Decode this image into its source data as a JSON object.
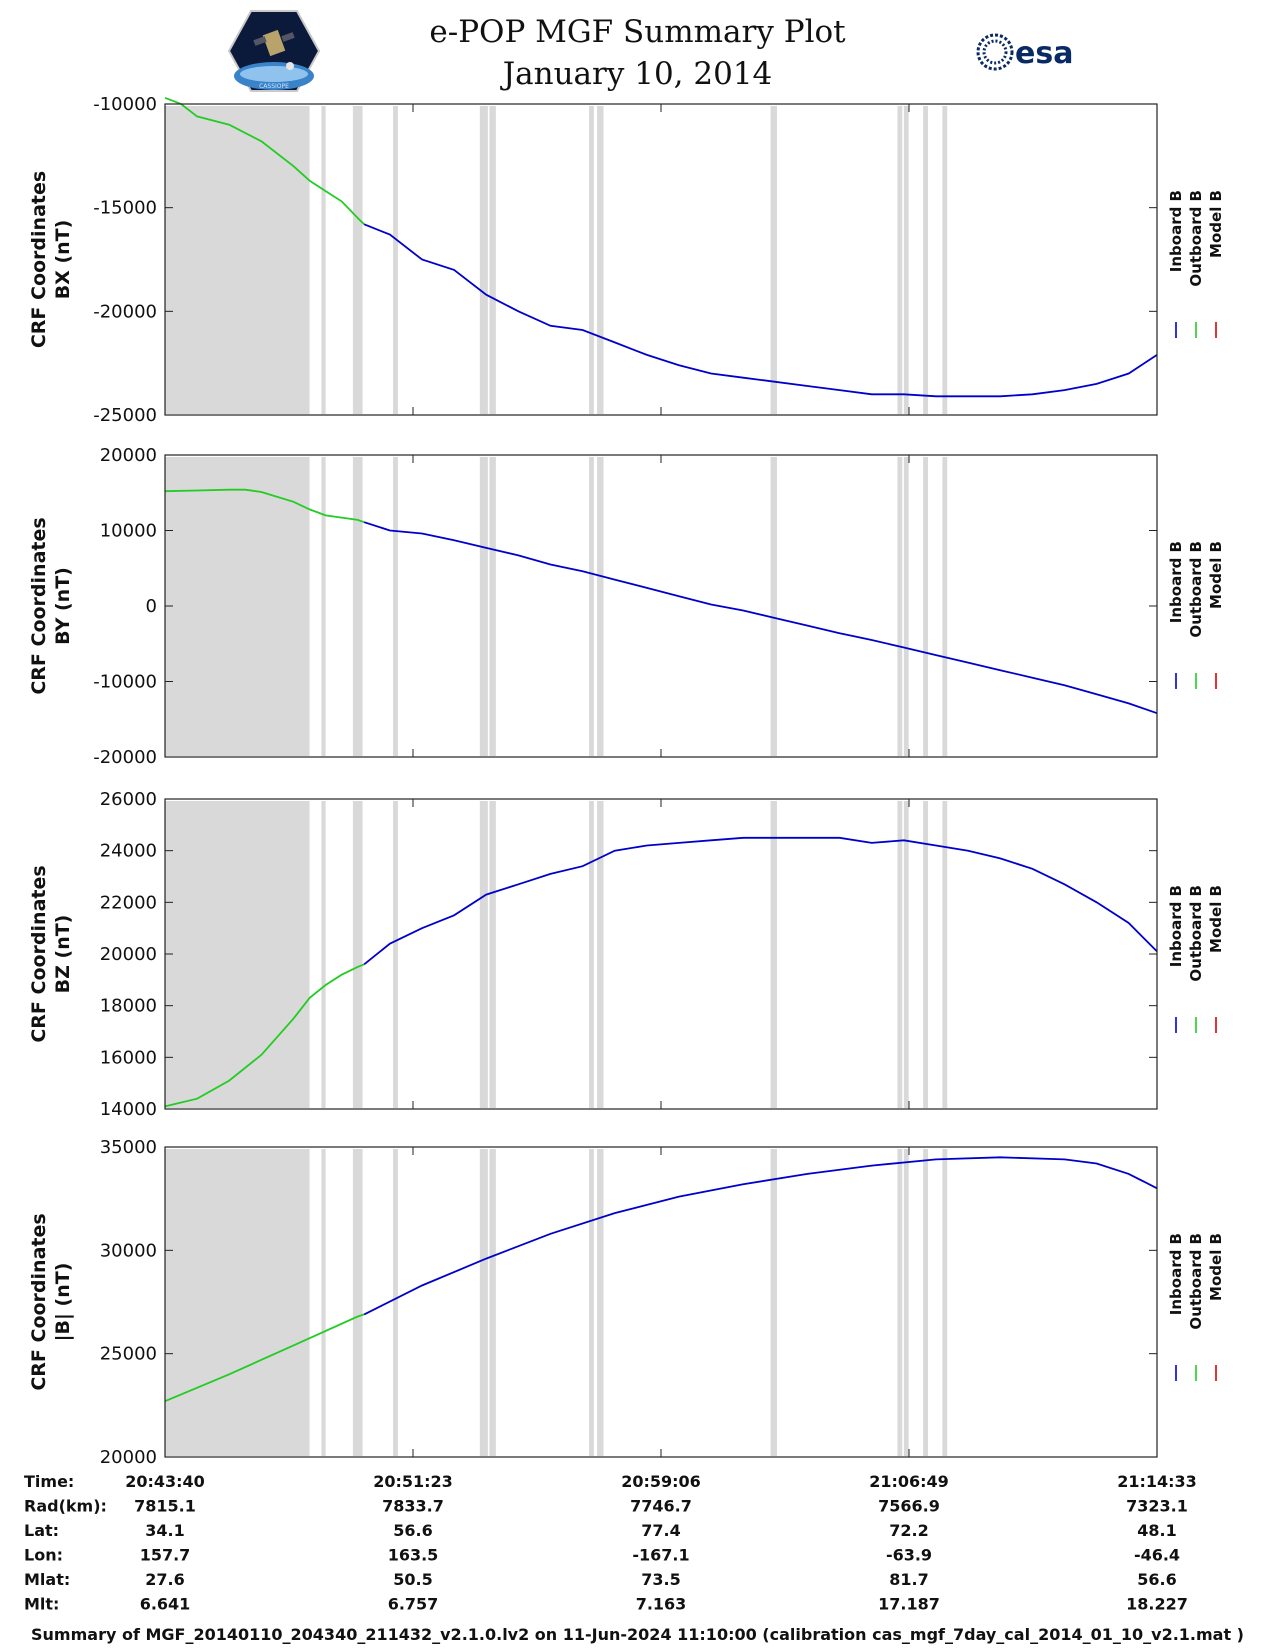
{
  "header": {
    "title": "e-POP MGF Summary Plot",
    "date": "January 10, 2014",
    "logo_left": "CASSIOPE",
    "logo_right": "esa"
  },
  "footer": "Summary of MGF_20140110_204340_211432_v2.1.0.lv2 on 11-Jun-2024 11:10:00 (calibration cas_mgf_7day_cal_2014_01_10_v2.1.mat )",
  "chart_data": {
    "type": "line",
    "x_tick_times": [
      "20:43:40",
      "20:51:23",
      "20:59:06",
      "21:06:49",
      "21:14:33"
    ],
    "x_range_minutes": [
      0,
      30.88
    ],
    "legend": [
      {
        "name": "Inboard B",
        "color": "#0000cc"
      },
      {
        "name": "Outboard B",
        "color": "#22cc22"
      },
      {
        "name": "Model B",
        "color": "#dd0000"
      }
    ],
    "shaded_color": "#d9d9d9",
    "shaded_intervals_minutes": [
      [
        0,
        4.5
      ],
      [
        4.87,
        5.0
      ],
      [
        5.85,
        6.15
      ],
      [
        7.1,
        7.25
      ],
      [
        9.8,
        10.05
      ],
      [
        10.1,
        10.3
      ],
      [
        13.2,
        13.35
      ],
      [
        13.45,
        13.65
      ],
      [
        18.85,
        19.05
      ],
      [
        22.8,
        22.95
      ],
      [
        23.0,
        23.15
      ],
      [
        23.6,
        23.75
      ],
      [
        24.2,
        24.35
      ]
    ],
    "outboard_end_minute": 6.2,
    "panels": [
      {
        "key": "bx",
        "ylabel_line1": "CRF Coordinates",
        "ylabel_line2": "BX (nT)",
        "ylim": [
          -25000,
          -10000
        ],
        "yticks": [
          -25000,
          -20000,
          -15000,
          -10000
        ],
        "series": [
          [
            0,
            -9700
          ],
          [
            0.5,
            -10000
          ],
          [
            1.0,
            -10600
          ],
          [
            2.0,
            -11000
          ],
          [
            3.0,
            -11800
          ],
          [
            4.0,
            -13000
          ],
          [
            4.5,
            -13700
          ],
          [
            5.0,
            -14200
          ],
          [
            5.5,
            -14700
          ],
          [
            6.0,
            -15500
          ],
          [
            6.2,
            -15800
          ],
          [
            7.0,
            -16300
          ],
          [
            8.0,
            -17500
          ],
          [
            9.0,
            -18000
          ],
          [
            10.0,
            -19200
          ],
          [
            11.0,
            -20000
          ],
          [
            12.0,
            -20700
          ],
          [
            13.0,
            -20900
          ],
          [
            14.0,
            -21500
          ],
          [
            15.0,
            -22100
          ],
          [
            16.0,
            -22600
          ],
          [
            17.0,
            -23000
          ],
          [
            18.0,
            -23200
          ],
          [
            19.0,
            -23400
          ],
          [
            20.0,
            -23600
          ],
          [
            21.0,
            -23800
          ],
          [
            22.0,
            -24000
          ],
          [
            23.0,
            -24000
          ],
          [
            24.0,
            -24100
          ],
          [
            25.0,
            -24100
          ],
          [
            26.0,
            -24100
          ],
          [
            27.0,
            -24000
          ],
          [
            28.0,
            -23800
          ],
          [
            29.0,
            -23500
          ],
          [
            30.0,
            -23000
          ],
          [
            30.88,
            -22100
          ]
        ]
      },
      {
        "key": "by",
        "ylabel_line1": "CRF Coordinates",
        "ylabel_line2": "BY (nT)",
        "ylim": [
          -20000,
          20000
        ],
        "yticks": [
          -20000,
          -10000,
          0,
          10000,
          20000
        ],
        "series": [
          [
            0,
            15200
          ],
          [
            1.0,
            15300
          ],
          [
            2.0,
            15400
          ],
          [
            2.5,
            15400
          ],
          [
            3.0,
            15100
          ],
          [
            4.0,
            13800
          ],
          [
            4.5,
            12800
          ],
          [
            5.0,
            12000
          ],
          [
            6.0,
            11400
          ],
          [
            6.2,
            11100
          ],
          [
            7.0,
            10000
          ],
          [
            8.0,
            9600
          ],
          [
            9.0,
            8700
          ],
          [
            10.0,
            7700
          ],
          [
            11.0,
            6700
          ],
          [
            12.0,
            5500
          ],
          [
            13.0,
            4600
          ],
          [
            14.0,
            3500
          ],
          [
            15.0,
            2400
          ],
          [
            16.0,
            1300
          ],
          [
            17.0,
            200
          ],
          [
            18.0,
            -600
          ],
          [
            19.0,
            -1600
          ],
          [
            20.0,
            -2600
          ],
          [
            21.0,
            -3600
          ],
          [
            22.0,
            -4500
          ],
          [
            23.0,
            -5500
          ],
          [
            24.0,
            -6500
          ],
          [
            25.0,
            -7500
          ],
          [
            26.0,
            -8500
          ],
          [
            27.0,
            -9500
          ],
          [
            28.0,
            -10500
          ],
          [
            29.0,
            -11700
          ],
          [
            30.0,
            -12900
          ],
          [
            30.88,
            -14200
          ]
        ]
      },
      {
        "key": "bz",
        "ylabel_line1": "CRF Coordinates",
        "ylabel_line2": "BZ (nT)",
        "ylim": [
          14000,
          26000
        ],
        "yticks": [
          14000,
          16000,
          18000,
          20000,
          22000,
          24000,
          26000
        ],
        "series": [
          [
            0,
            14100
          ],
          [
            1.0,
            14400
          ],
          [
            2.0,
            15100
          ],
          [
            3.0,
            16100
          ],
          [
            4.0,
            17500
          ],
          [
            4.5,
            18300
          ],
          [
            5.0,
            18800
          ],
          [
            5.5,
            19200
          ],
          [
            6.0,
            19500
          ],
          [
            6.2,
            19600
          ],
          [
            7.0,
            20400
          ],
          [
            8.0,
            21000
          ],
          [
            9.0,
            21500
          ],
          [
            10.0,
            22300
          ],
          [
            11.0,
            22700
          ],
          [
            12.0,
            23100
          ],
          [
            13.0,
            23400
          ],
          [
            14.0,
            24000
          ],
          [
            15.0,
            24200
          ],
          [
            16.0,
            24300
          ],
          [
            17.0,
            24400
          ],
          [
            18.0,
            24500
          ],
          [
            19.0,
            24500
          ],
          [
            20.0,
            24500
          ],
          [
            21.0,
            24500
          ],
          [
            22.0,
            24300
          ],
          [
            23.0,
            24400
          ],
          [
            24.0,
            24200
          ],
          [
            25.0,
            24000
          ],
          [
            26.0,
            23700
          ],
          [
            27.0,
            23300
          ],
          [
            28.0,
            22700
          ],
          [
            29.0,
            22000
          ],
          [
            30.0,
            21200
          ],
          [
            30.88,
            20100
          ]
        ]
      },
      {
        "key": "b",
        "ylabel_line1": "CRF Coordinates",
        "ylabel_line2": "|B| (nT)",
        "ylim": [
          20000,
          35000
        ],
        "yticks": [
          20000,
          25000,
          30000,
          35000
        ],
        "series": [
          [
            0,
            22700
          ],
          [
            2.0,
            24000
          ],
          [
            4.0,
            25400
          ],
          [
            6.0,
            26800
          ],
          [
            6.2,
            26900
          ],
          [
            8.0,
            28300
          ],
          [
            10.0,
            29600
          ],
          [
            12.0,
            30800
          ],
          [
            14.0,
            31800
          ],
          [
            16.0,
            32600
          ],
          [
            18.0,
            33200
          ],
          [
            20.0,
            33700
          ],
          [
            22.0,
            34100
          ],
          [
            24.0,
            34400
          ],
          [
            26.0,
            34500
          ],
          [
            28.0,
            34400
          ],
          [
            29.0,
            34200
          ],
          [
            30.0,
            33700
          ],
          [
            30.88,
            33000
          ]
        ]
      }
    ],
    "ephemeris": [
      {
        "label": "Time:",
        "values": [
          "20:43:40",
          "20:51:23",
          "20:59:06",
          "21:06:49",
          "21:14:33"
        ]
      },
      {
        "label": "Rad(km):",
        "values": [
          "7815.1",
          "7833.7",
          "7746.7",
          "7566.9",
          "7323.1"
        ]
      },
      {
        "label": "Lat:",
        "values": [
          "34.1",
          "56.6",
          "77.4",
          "72.2",
          "48.1"
        ]
      },
      {
        "label": "Lon:",
        "values": [
          "157.7",
          "163.5",
          "-167.1",
          "-63.9",
          "-46.4"
        ]
      },
      {
        "label": "Mlat:",
        "values": [
          "27.6",
          "50.5",
          "73.5",
          "81.7",
          "56.6"
        ]
      },
      {
        "label": "Mlt:",
        "values": [
          "6.641",
          "6.757",
          "7.163",
          "17.187",
          "18.227"
        ]
      }
    ]
  }
}
